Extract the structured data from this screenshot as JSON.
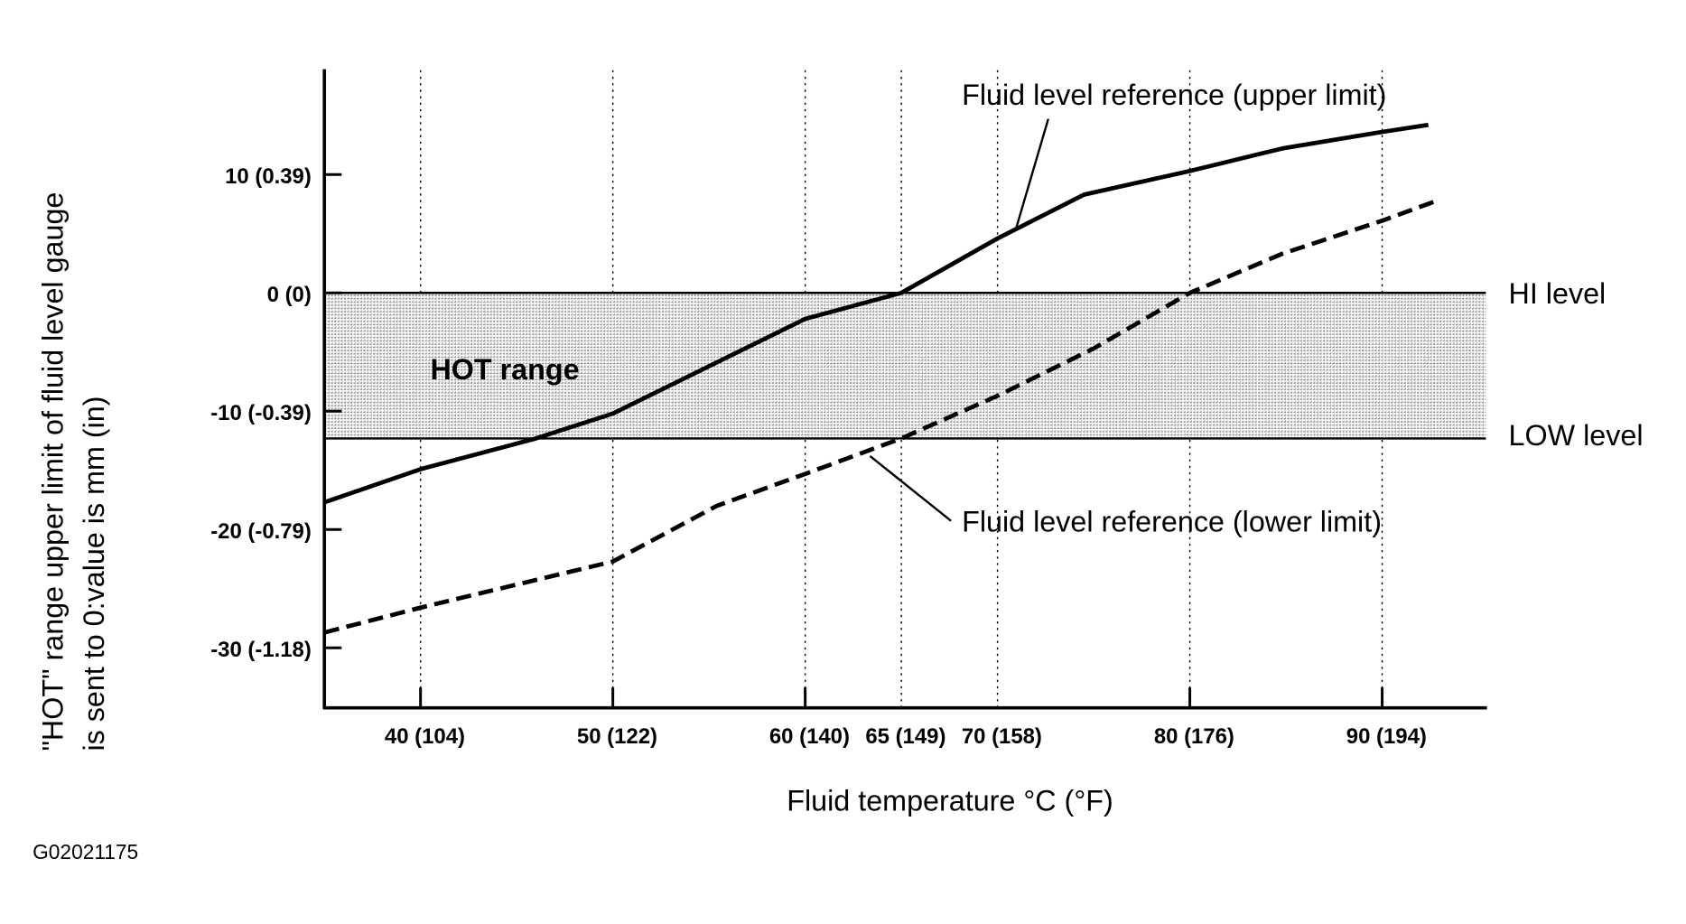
{
  "chart_data": {
    "type": "line",
    "xlabel": "Fluid temperature °C (°F)",
    "ylabel_line1": "\"HOT\" range upper limit of fluid level gauge",
    "ylabel_line2": "is sent to 0:value is mm (in)",
    "xlim": [
      35,
      95.4
    ],
    "ylim": [
      -35.7,
      19.2
    ],
    "grid": "vertical dotted lines at x ticks",
    "x_ticks": [
      {
        "value": 40,
        "label": "40 (104)"
      },
      {
        "value": 50,
        "label": "50 (122)"
      },
      {
        "value": 60,
        "label": "60 (140)"
      },
      {
        "value": 65,
        "label": "65 (149)"
      },
      {
        "value": 70,
        "label": "70 (158)"
      },
      {
        "value": 80,
        "label": "80 (176)"
      },
      {
        "value": 90,
        "label": "90 (194)"
      }
    ],
    "y_ticks": [
      {
        "value": 10,
        "label": "10 (0.39)"
      },
      {
        "value": 0,
        "label": "0 (0)"
      },
      {
        "value": -10,
        "label": "-10 (-0.39)"
      },
      {
        "value": -20,
        "label": "-20 (-0.79)"
      },
      {
        "value": -30,
        "label": "-30 (-1.18)"
      }
    ],
    "band": {
      "label": "HOT range",
      "from": -12.3,
      "to": 0,
      "upper_label": "HI level",
      "lower_label": "LOW level"
    },
    "series": [
      {
        "name": "Fluid level reference (upper limit)",
        "style": "solid",
        "x": [
          35,
          40,
          46,
          50,
          60,
          65,
          70,
          74.5,
          80,
          84.8,
          90,
          92.4
        ],
        "y": [
          -17.7,
          -14.9,
          -12.3,
          -10.2,
          -2.2,
          0,
          4.6,
          8.3,
          10.3,
          12.2,
          13.6,
          14.2
        ]
      },
      {
        "name": "Fluid level reference (lower limit)",
        "style": "dashed",
        "x": [
          35,
          40,
          50,
          55.4,
          60,
          65,
          70,
          75,
          80,
          84.8,
          90,
          92.7
        ],
        "y": [
          -28.7,
          -26.6,
          -22.7,
          -18,
          -15.3,
          -12.3,
          -8.7,
          -4.7,
          0,
          3.3,
          6.1,
          7.7
        ]
      }
    ]
  },
  "figure_id": "G02021175"
}
